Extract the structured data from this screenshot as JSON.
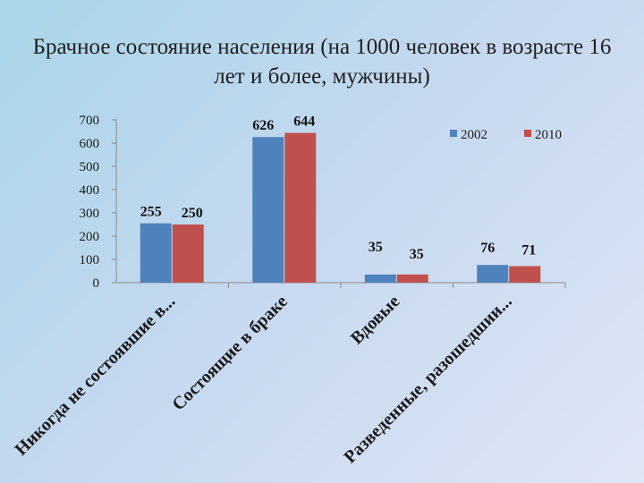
{
  "slide": {
    "title": "Брачное состояние населения (на 1000 человек в возрасте 16 лет и более, мужчины)"
  },
  "chart_data": {
    "type": "bar",
    "categories": [
      "Никогда не состоявшие в...",
      "Состоящие в браке",
      "Вдовые",
      "Разведенные, разошедшии..."
    ],
    "series": [
      {
        "name": "2002",
        "values": [
          255,
          626,
          35,
          76
        ],
        "color": "#4f81bd"
      },
      {
        "name": "2010",
        "values": [
          250,
          644,
          35,
          71
        ],
        "color": "#c0504d"
      }
    ],
    "ylim": [
      0,
      700
    ],
    "yticks": [
      0,
      100,
      200,
      300,
      400,
      500,
      600,
      700
    ],
    "legend_position": "top-right",
    "grid": false
  }
}
